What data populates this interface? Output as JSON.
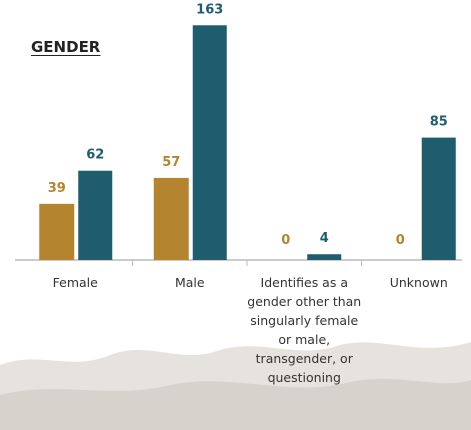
{
  "chart_data": {
    "type": "bar",
    "title": "GENDER",
    "categories": [
      "Female",
      "Male",
      "Identifies as a gender other than singularly female or male, transgender, or questioning",
      "Unknown"
    ],
    "series": [
      {
        "color": "#b5842e",
        "values": [
          39,
          57,
          0,
          0
        ]
      },
      {
        "color": "#1f5c6e",
        "values": [
          62,
          163,
          4,
          85
        ]
      }
    ]
  }
}
